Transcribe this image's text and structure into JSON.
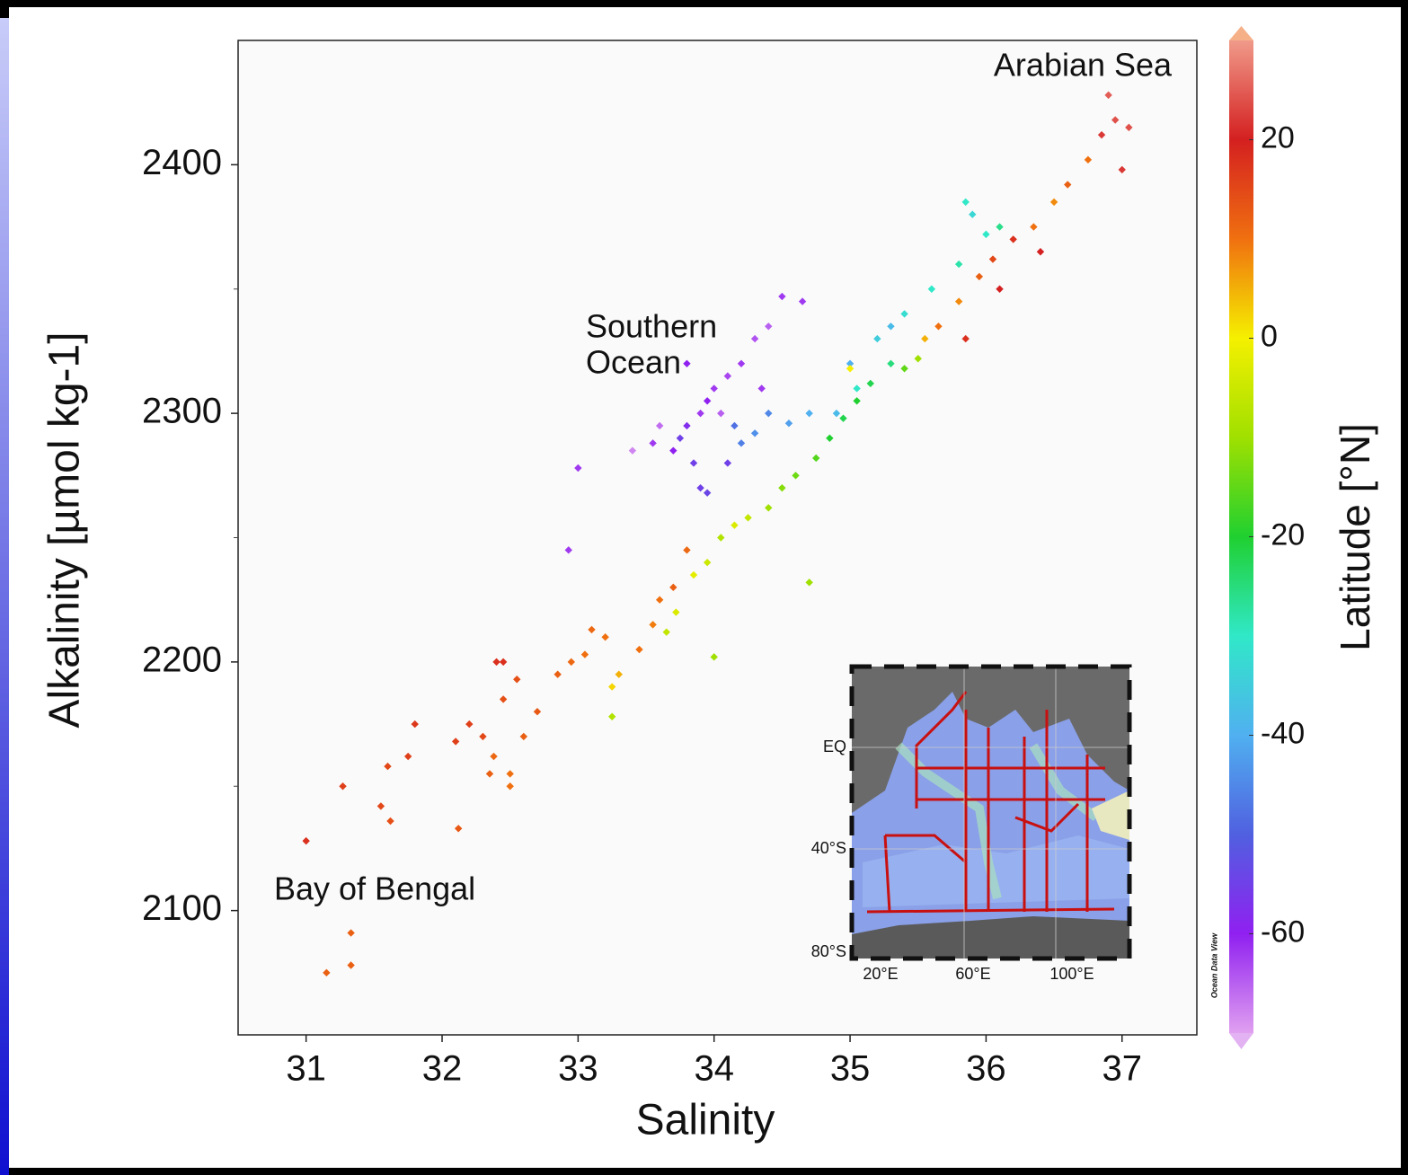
{
  "chart_data": {
    "type": "scatter",
    "xlabel": "Salinity",
    "ylabel": "Alkalinity [µmol kg-1]",
    "xlim": [
      30.5,
      37.55
    ],
    "ylim": [
      2050,
      2450
    ],
    "xticks": [
      31,
      32,
      33,
      34,
      35,
      36,
      37
    ],
    "yticks": [
      2100,
      2200,
      2300,
      2400
    ],
    "yminorticks": [
      2150,
      2250,
      2350
    ],
    "colorbar": {
      "label": "Latitude [°N]",
      "lim": [
        -70,
        30
      ],
      "ticks": [
        -60,
        -40,
        -20,
        0,
        20
      ],
      "colors": [
        "#f09a8a",
        "#d42020",
        "#f07010",
        "#f5f000",
        "#a0e000",
        "#20d030",
        "#30e8c8",
        "#50b0f0",
        "#5060e0",
        "#9020f0",
        "#e0a0f0"
      ],
      "extend_colors": [
        "#f6b088",
        "#e2b2f2"
      ]
    },
    "series": [
      {
        "x": [
          31.0,
          31.27,
          31.15,
          31.33,
          31.33,
          31.55,
          31.62,
          31.6,
          31.75,
          31.8,
          32.1,
          32.12,
          32.2,
          32.3,
          32.35,
          32.38,
          32.4,
          32.45,
          32.45,
          32.5,
          32.5,
          32.55,
          32.6,
          32.7,
          32.85,
          32.95,
          33.05,
          33.1,
          33.2,
          33.3,
          33.25,
          33.25,
          33.45,
          33.55,
          33.6,
          33.7,
          33.8,
          33.85,
          33.95,
          33.72,
          33.65,
          34.0,
          34.05,
          34.15,
          34.25,
          34.4,
          34.5,
          34.6,
          34.7,
          34.75,
          34.85,
          34.95,
          35.05,
          35.15,
          35.3,
          35.4,
          35.5,
          35.55,
          35.65,
          35.8,
          35.95,
          36.05,
          36.2,
          36.35,
          36.5,
          36.6,
          36.75,
          36.85,
          36.9,
          36.95,
          37.0,
          37.05,
          36.4,
          36.1,
          35.85,
          35.2,
          35.4,
          35.6,
          35.8,
          36.0,
          36.1,
          35.85,
          35.9,
          35.05,
          34.9,
          34.7,
          34.55,
          34.4,
          34.3,
          34.15,
          34.2,
          35.0,
          35.3,
          33.7,
          33.75,
          33.8,
          33.85,
          33.9,
          33.95,
          34.0,
          34.05,
          34.1,
          34.2,
          34.3,
          34.4,
          34.5,
          34.65,
          33.6,
          33.55,
          33.9,
          33.95,
          34.1,
          33.4,
          33.0,
          32.93,
          33.8,
          34.35,
          35.0
        ],
        "values": [
          2128,
          2150,
          2075,
          2091,
          2078,
          2142,
          2136,
          2158,
          2162,
          2175,
          2168,
          2133,
          2175,
          2170,
          2155,
          2162,
          2200,
          2200,
          2185,
          2155,
          2150,
          2193,
          2170,
          2180,
          2195,
          2200,
          2203,
          2213,
          2210,
          2195,
          2190,
          2178,
          2205,
          2215,
          2225,
          2230,
          2245,
          2235,
          2240,
          2220,
          2212,
          2202,
          2250,
          2255,
          2258,
          2262,
          2270,
          2275,
          2232,
          2282,
          2290,
          2298,
          2305,
          2312,
          2320,
          2318,
          2322,
          2330,
          2335,
          2345,
          2355,
          2362,
          2370,
          2375,
          2385,
          2392,
          2402,
          2412,
          2428,
          2418,
          2398,
          2415,
          2365,
          2350,
          2330,
          2330,
          2340,
          2350,
          2360,
          2372,
          2375,
          2385,
          2380,
          2310,
          2300,
          2300,
          2296,
          2300,
          2292,
          2295,
          2288,
          2320,
          2335,
          2285,
          2290,
          2295,
          2280,
          2300,
          2305,
          2310,
          2300,
          2315,
          2320,
          2330,
          2335,
          2347,
          2345,
          2295,
          2288,
          2270,
          2268,
          2280,
          2285,
          2278,
          2245,
          2320,
          2310,
          2318
        ],
        "latitude": [
          18,
          16,
          12,
          12,
          12,
          15,
          14,
          15,
          16,
          17,
          16,
          13,
          16,
          15,
          12,
          11,
          18,
          18,
          14,
          10,
          10,
          14,
          12,
          13,
          12,
          11,
          10,
          11,
          10,
          5,
          2,
          -8,
          10,
          9,
          10,
          12,
          11,
          -2,
          -5,
          -3,
          -6,
          -10,
          -8,
          -3,
          -6,
          -10,
          -12,
          -14,
          -10,
          -16,
          -20,
          -22,
          -20,
          -22,
          -25,
          -15,
          -10,
          5,
          10,
          8,
          12,
          15,
          18,
          10,
          8,
          12,
          10,
          22,
          25,
          24,
          22,
          24,
          20,
          20,
          18,
          -35,
          -32,
          -30,
          -28,
          -30,
          -26,
          -30,
          -33,
          -30,
          -38,
          -40,
          -42,
          -45,
          -44,
          -48,
          -46,
          -40,
          -38,
          -60,
          -55,
          -58,
          -55,
          -62,
          -60,
          -62,
          -65,
          -63,
          -62,
          -64,
          -65,
          -62,
          -62,
          -66,
          -62,
          -55,
          -54,
          -55,
          -68,
          -62,
          -62,
          -60,
          -62,
          0
        ]
      }
    ],
    "annotations": [
      {
        "lines": [
          "Arabian Sea"
        ]
      },
      {
        "lines": [
          "Southern",
          "Ocean"
        ]
      },
      {
        "lines": [
          "Bay of Bengal"
        ]
      }
    ],
    "inset": {
      "yticks": [
        "EQ",
        "40°S",
        "80°S"
      ],
      "xticks": [
        "20°E",
        "60°E",
        "100°E"
      ]
    },
    "credit": "Ocean Data View"
  }
}
